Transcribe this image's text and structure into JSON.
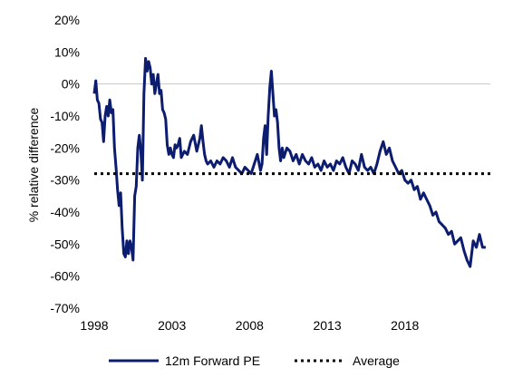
{
  "chart_data": {
    "type": "line",
    "title": "",
    "xlabel": "",
    "ylabel": "% relative  difference",
    "xlim": [
      1998,
      2023.5
    ],
    "ylim": [
      -70,
      20
    ],
    "x_ticks": [
      1998,
      2003,
      2008,
      2013,
      2018
    ],
    "x_tick_labels": [
      "1998",
      "2003",
      "2008",
      "2013",
      "2018"
    ],
    "y_ticks": [
      20,
      10,
      0,
      -10,
      -20,
      -30,
      -40,
      -50,
      -60,
      -70
    ],
    "y_tick_labels": [
      "20%",
      "10%",
      "0%",
      "-10%",
      "-20%",
      "-30%",
      "-40%",
      "-50%",
      "-60%",
      "-70%"
    ],
    "zero_line": true,
    "grid": false,
    "legend_position": "bottom",
    "series": [
      {
        "name": "12m Forward PE",
        "color": "#0c1c6e",
        "style": "solid",
        "x": [
          1998.0,
          1998.1,
          1998.2,
          1998.3,
          1998.4,
          1998.5,
          1998.6,
          1998.7,
          1998.8,
          1998.9,
          1999.0,
          1999.1,
          1999.2,
          1999.3,
          1999.4,
          1999.5,
          1999.6,
          1999.7,
          1999.8,
          1999.9,
          2000.0,
          2000.1,
          2000.2,
          2000.3,
          2000.4,
          2000.5,
          2000.6,
          2000.7,
          2000.8,
          2000.9,
          2001.0,
          2001.1,
          2001.2,
          2001.3,
          2001.4,
          2001.5,
          2001.6,
          2001.7,
          2001.8,
          2001.9,
          2002.0,
          2002.1,
          2002.2,
          2002.3,
          2002.4,
          2002.5,
          2002.6,
          2002.7,
          2002.8,
          2002.9,
          2003.0,
          2003.1,
          2003.2,
          2003.3,
          2003.4,
          2003.5,
          2003.6,
          2003.8,
          2004.0,
          2004.2,
          2004.4,
          2004.6,
          2004.8,
          2004.9,
          2005.0,
          2005.1,
          2005.2,
          2005.3,
          2005.5,
          2005.7,
          2005.9,
          2006.1,
          2006.3,
          2006.5,
          2006.7,
          2006.9,
          2007.1,
          2007.3,
          2007.5,
          2007.7,
          2007.9,
          2008.1,
          2008.3,
          2008.5,
          2008.7,
          2008.8,
          2008.9,
          2009.0,
          2009.1,
          2009.2,
          2009.3,
          2009.4,
          2009.5,
          2009.6,
          2009.7,
          2009.8,
          2009.9,
          2010.0,
          2010.1,
          2010.2,
          2010.4,
          2010.6,
          2010.8,
          2011.0,
          2011.2,
          2011.4,
          2011.6,
          2011.8,
          2012.0,
          2012.2,
          2012.4,
          2012.6,
          2012.8,
          2013.0,
          2013.2,
          2013.4,
          2013.6,
          2013.8,
          2014.0,
          2014.2,
          2014.4,
          2014.6,
          2014.8,
          2015.0,
          2015.2,
          2015.4,
          2015.6,
          2015.8,
          2016.0,
          2016.2,
          2016.4,
          2016.6,
          2016.8,
          2017.0,
          2017.2,
          2017.4,
          2017.6,
          2017.8,
          2018.0,
          2018.2,
          2018.4,
          2018.6,
          2018.8,
          2019.0,
          2019.2,
          2019.4,
          2019.6,
          2019.8,
          2020.0,
          2020.2,
          2020.4,
          2020.6,
          2020.8,
          2021.0,
          2021.2,
          2021.4,
          2021.6,
          2021.8,
          2022.0,
          2022.2,
          2022.4,
          2022.6,
          2022.8,
          2023.0,
          2023.2
        ],
        "values": [
          -3,
          1,
          -5,
          -6,
          -11,
          -12,
          -18,
          -10,
          -7,
          -10,
          -5,
          -9,
          -8,
          -20,
          -26,
          -33,
          -38,
          -34,
          -45,
          -53,
          -54,
          -49,
          -53,
          -49,
          -51,
          -55,
          -35,
          -32,
          -20,
          -16,
          -21,
          -30,
          -3,
          8,
          4,
          7,
          5,
          0,
          3,
          -3,
          0,
          3,
          -3,
          -2,
          -8,
          -9,
          -11,
          -19,
          -22,
          -20,
          -22,
          -23,
          -19,
          -20,
          -19,
          -17,
          -23,
          -21,
          -22,
          -18,
          -16,
          -21,
          -17,
          -13,
          -18,
          -22,
          -24,
          -25,
          -24,
          -26,
          -24,
          -25,
          -23,
          -24,
          -26,
          -23,
          -26,
          -27,
          -28,
          -26,
          -27,
          -28,
          -25,
          -22,
          -27,
          -25,
          -17,
          -13,
          -22,
          -10,
          -1,
          4,
          -3,
          -10,
          -8,
          -12,
          -20,
          -24,
          -20,
          -23,
          -20,
          -21,
          -24,
          -22,
          -25,
          -22,
          -24,
          -25,
          -23,
          -26,
          -25,
          -27,
          -24,
          -26,
          -25,
          -27,
          -24,
          -25,
          -23,
          -26,
          -28,
          -24,
          -25,
          -27,
          -22,
          -26,
          -27,
          -26,
          -28,
          -25,
          -21,
          -18,
          -22,
          -20,
          -24,
          -26,
          -28,
          -27,
          -30,
          -31,
          -30,
          -33,
          -32,
          -36,
          -34,
          -36,
          -38,
          -41,
          -40,
          -43,
          -44,
          -45,
          -47,
          -46,
          -50,
          -49,
          -48,
          -52,
          -55,
          -57,
          -49,
          -51,
          -47,
          -51,
          -51
        ]
      },
      {
        "name": "Average",
        "color": "#000000",
        "style": "dotted",
        "x": [
          1998,
          2023.5
        ],
        "values": [
          -28,
          -28
        ]
      }
    ]
  }
}
